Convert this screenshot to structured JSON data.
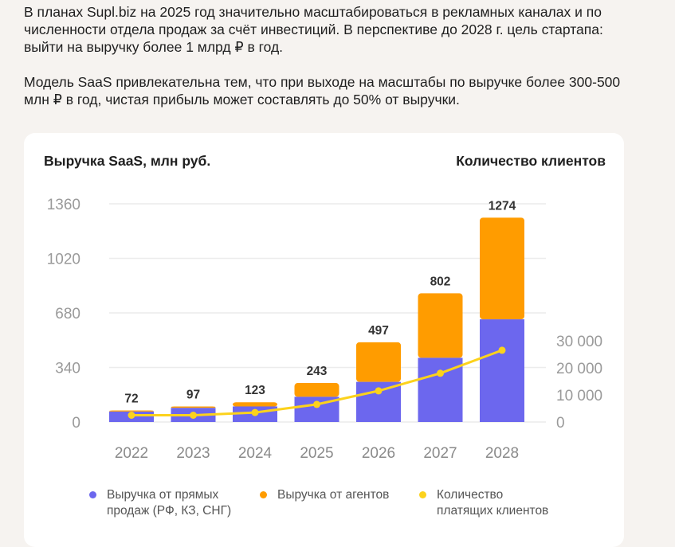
{
  "text": {
    "paragraph1": "В планах Supl.biz на 2025 год значительно масштабироваться в рекламных каналах и по численности отдела продаж за счёт инвестиций. В перспективе до 2028 г. цель стартапа: выйти на выручку более 1 млрд ₽ в год.",
    "paragraph2": "Модель SaaS привлекательна тем, что при выходе на масштабы по выручке более 300-500 млн ₽ в год, чистая прибыль может составлять до 50% от выручки."
  },
  "chart_data": {
    "type": "bar",
    "stacked": true,
    "title": "Выручка SaaS, млн руб.",
    "secondary_axis_title": "Количество клиентов",
    "categories": [
      "2022",
      "2023",
      "2024",
      "2025",
      "2026",
      "2027",
      "2028"
    ],
    "totals": [
      72,
      97,
      123,
      243,
      497,
      802,
      1274
    ],
    "series": [
      {
        "name": "Выручка от прямых продаж (РФ, КЗ, СНГ)",
        "type": "bar",
        "color": "#6c67ee",
        "values": [
          65,
          88,
          97,
          157,
          250,
          400,
          640
        ]
      },
      {
        "name": "Выручка от агентов",
        "type": "bar",
        "color": "#ff9c00",
        "values": [
          7,
          9,
          26,
          86,
          247,
          402,
          634
        ]
      },
      {
        "name": "Количество платящих клиентов",
        "type": "line",
        "axis": "right",
        "color": "#fcd21c",
        "values": [
          2500,
          2500,
          3500,
          6500,
          11500,
          18000,
          26500
        ]
      }
    ],
    "yticks": [
      "0",
      "340",
      "680",
      "1020",
      "1360"
    ],
    "ylim": [
      0,
      1360
    ],
    "y2ticks": [
      "0",
      "10 000",
      "20 000",
      "30 000"
    ],
    "y2lim": [
      0,
      30000
    ],
    "grid": true,
    "legend_position": "bottom"
  },
  "legend": {
    "direct": [
      "Выручка от прямых",
      "продаж (РФ, КЗ, СНГ)"
    ],
    "agents": [
      "Выручка от агентов"
    ],
    "clients": [
      "Количество",
      "платящих клиентов"
    ]
  }
}
